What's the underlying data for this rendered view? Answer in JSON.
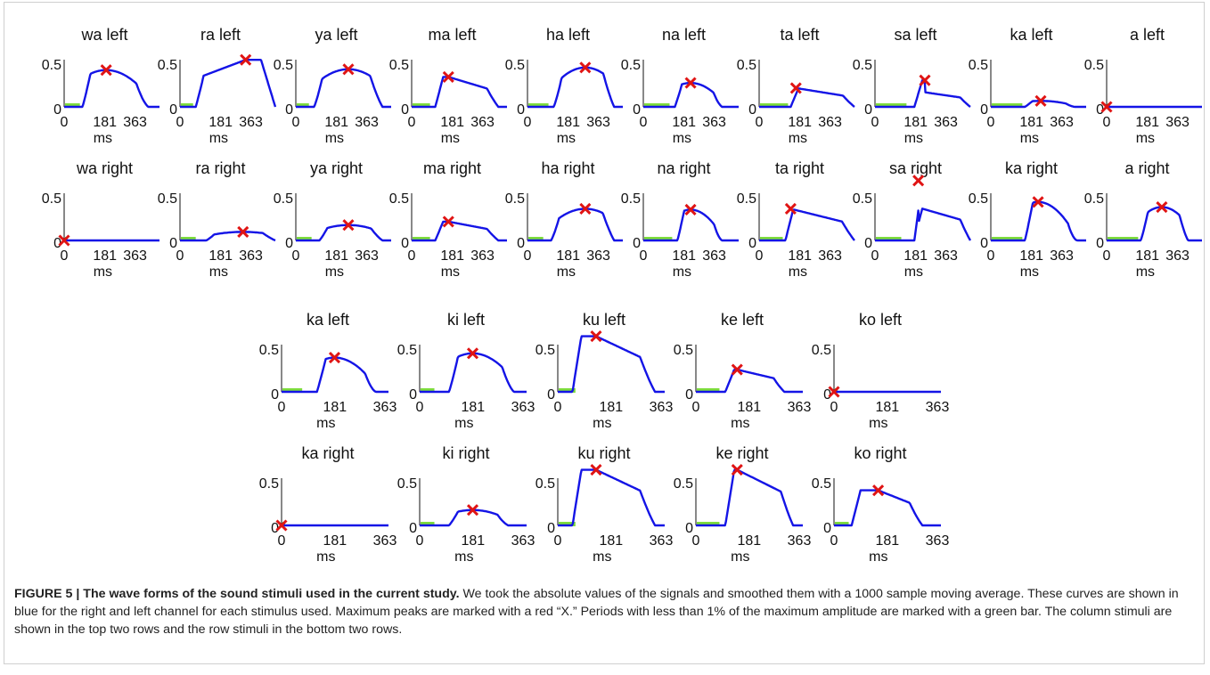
{
  "figure": {
    "caption_label": "FIGURE 5 | The wave forms of the sound stimuli used in the current study.",
    "caption_text": " We took the absolute values of the signals and smoothed them with a 1000 sample moving average. These curves are shown in blue for the right and left channel for each stimulus used. Maximum peaks are marked with a red “X.” Periods with less than 1% of the maximum amplitude are marked with a green bar. The column stimuli are shown in the top two rows and the row stimuli in the bottom two rows."
  },
  "colors": {
    "curve": "#1414e6",
    "peak_marker": "#e01414",
    "silence_bar": "#7ddc3c",
    "axis": "#111111"
  },
  "chart_data": [
    {
      "type": "line",
      "group": "column stimuli",
      "x_tick_labels": [
        "0",
        "181",
        "363"
      ],
      "xlabel": "ms",
      "y_tick_labels": [
        "0.5",
        "0"
      ],
      "xlim": [
        0,
        363
      ],
      "ylim": [
        0,
        0.5
      ],
      "panels": [
        {
          "title": "wa left",
          "on": 70,
          "off": 320,
          "peak_x": 160,
          "peak": 0.43,
          "shape": "round",
          "bar_end": 60
        },
        {
          "title": "ra left",
          "on": 60,
          "off": 363,
          "peak_x": 250,
          "peak": 0.55,
          "shape": "rise",
          "bar_end": 50
        },
        {
          "title": "ya left",
          "on": 70,
          "off": 330,
          "peak_x": 200,
          "peak": 0.44,
          "shape": "round",
          "bar_end": 50
        },
        {
          "title": "ma left",
          "on": 90,
          "off": 330,
          "peak_x": 140,
          "peak": 0.35,
          "shape": "decay",
          "bar_end": 70
        },
        {
          "title": "ha left",
          "on": 100,
          "off": 330,
          "peak_x": 220,
          "peak": 0.46,
          "shape": "round",
          "bar_end": 80
        },
        {
          "title": "na left",
          "on": 120,
          "off": 300,
          "peak_x": 180,
          "peak": 0.28,
          "shape": "round",
          "bar_end": 100
        },
        {
          "title": "ta left",
          "on": 120,
          "off": 363,
          "peak_x": 140,
          "peak": 0.22,
          "shape": "decay",
          "bar_end": 110
        },
        {
          "title": "sa left",
          "on": 150,
          "off": 363,
          "peak_x": 190,
          "peak": 0.31,
          "shape": "spike",
          "bar_end": 120
        },
        {
          "title": "ka left",
          "on": 130,
          "off": 320,
          "peak_x": 190,
          "peak": 0.07,
          "shape": "round",
          "bar_end": 120
        },
        {
          "title": "a left",
          "silent": true,
          "peak_x": 0,
          "peak": 0.0
        },
        {
          "title": "wa right",
          "silent": true,
          "peak_x": 0,
          "peak": 0.0
        },
        {
          "title": "ra right",
          "on": 100,
          "off": 363,
          "peak_x": 240,
          "peak": 0.1,
          "shape": "round",
          "bar_end": 60
        },
        {
          "title": "ya right",
          "on": 90,
          "off": 330,
          "peak_x": 200,
          "peak": 0.18,
          "shape": "round",
          "bar_end": 60
        },
        {
          "title": "ma right",
          "on": 90,
          "off": 330,
          "peak_x": 140,
          "peak": 0.22,
          "shape": "decay",
          "bar_end": 70
        },
        {
          "title": "ha right",
          "on": 90,
          "off": 330,
          "peak_x": 220,
          "peak": 0.37,
          "shape": "round",
          "bar_end": 60
        },
        {
          "title": "na right",
          "on": 130,
          "off": 300,
          "peak_x": 180,
          "peak": 0.36,
          "shape": "round",
          "bar_end": 110
        },
        {
          "title": "ta right",
          "on": 100,
          "off": 363,
          "peak_x": 120,
          "peak": 0.37,
          "shape": "decay",
          "bar_end": 90
        },
        {
          "title": "sa right",
          "on": 150,
          "off": 363,
          "peak_x": 165,
          "peak": 0.7,
          "shape": "spike",
          "bar_end": 100
        },
        {
          "title": "ka right",
          "on": 130,
          "off": 330,
          "peak_x": 180,
          "peak": 0.45,
          "shape": "round",
          "bar_end": 120
        },
        {
          "title": "a right",
          "on": 130,
          "off": 310,
          "peak_x": 210,
          "peak": 0.39,
          "shape": "round",
          "bar_end": 120
        }
      ]
    },
    {
      "type": "line",
      "group": "row stimuli",
      "x_tick_labels": [
        "0",
        "181",
        "363"
      ],
      "xlabel": "ms",
      "y_tick_labels": [
        "0.5",
        "0"
      ],
      "xlim": [
        0,
        363
      ],
      "ylim": [
        0,
        0.5
      ],
      "panels": [
        {
          "title": "ka left",
          "on": 120,
          "off": 320,
          "peak_x": 180,
          "peak": 0.4,
          "shape": "round",
          "bar_end": 70
        },
        {
          "title": "ki left",
          "on": 100,
          "off": 320,
          "peak_x": 180,
          "peak": 0.45,
          "shape": "round",
          "bar_end": 50
        },
        {
          "title": "ku left",
          "on": 50,
          "off": 330,
          "peak_x": 130,
          "peak": 0.65,
          "shape": "decay",
          "bar_end": 60
        },
        {
          "title": "ke left",
          "on": 100,
          "off": 300,
          "peak_x": 140,
          "peak": 0.26,
          "shape": "decay",
          "bar_end": 80
        },
        {
          "title": "ko left",
          "silent": true,
          "peak_x": 0,
          "peak": 0.0
        },
        {
          "title": "ka right",
          "silent": true,
          "peak_x": 0,
          "peak": 0.0
        },
        {
          "title": "ki right",
          "on": 100,
          "off": 300,
          "peak_x": 180,
          "peak": 0.18,
          "shape": "round",
          "bar_end": 50
        },
        {
          "title": "ku right",
          "on": 50,
          "off": 330,
          "peak_x": 130,
          "peak": 0.65,
          "shape": "decay",
          "bar_end": 60
        },
        {
          "title": "ke right",
          "on": 100,
          "off": 330,
          "peak_x": 140,
          "peak": 0.65,
          "shape": "decay",
          "bar_end": 80
        },
        {
          "title": "ko right",
          "on": 60,
          "off": 300,
          "peak_x": 150,
          "peak": 0.41,
          "shape": "decay",
          "bar_end": 50
        }
      ]
    }
  ]
}
